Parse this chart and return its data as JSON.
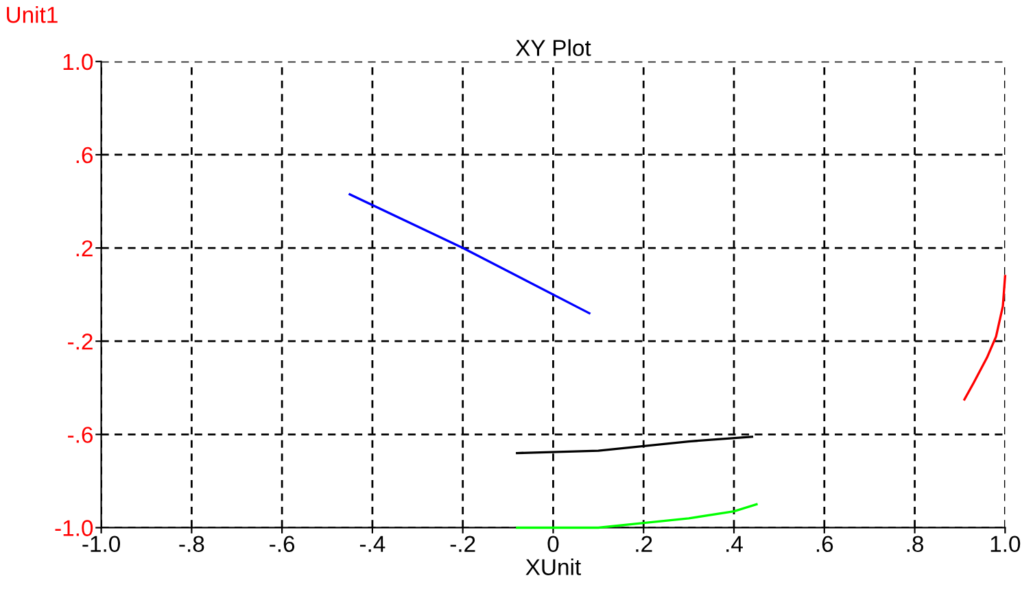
{
  "chart_data": {
    "type": "line",
    "title": "XY Plot",
    "xlabel": "XUnit",
    "ylabel": "Unit1",
    "xlim": [
      -1.0,
      1.0
    ],
    "ylim": [
      -1.0,
      1.0
    ],
    "xticks": [
      {
        "value": -1.0,
        "label": "-1.0"
      },
      {
        "value": -0.8,
        "label": "-.8"
      },
      {
        "value": -0.6,
        "label": "-.6"
      },
      {
        "value": -0.4,
        "label": "-.4"
      },
      {
        "value": -0.2,
        "label": "-.2"
      },
      0,
      {
        "value": 0.2,
        "label": ".2"
      },
      {
        "value": 0.4,
        "label": ".4"
      },
      {
        "value": 0.6,
        "label": ".6"
      },
      {
        "value": 0.8,
        "label": ".8"
      },
      {
        "value": 1.0,
        "label": "1.0"
      }
    ],
    "yticks": [
      {
        "value": -1.0,
        "label": "-1.0"
      },
      {
        "value": -0.6,
        "label": "-.6"
      },
      {
        "value": -0.2,
        "label": "-.2"
      },
      {
        "value": 0.2,
        "label": ".2"
      },
      {
        "value": 0.6,
        "label": ".6"
      },
      {
        "value": 1.0,
        "label": "1.0"
      }
    ],
    "grid": true,
    "marker": "none",
    "series": [
      {
        "color": "#0000ff",
        "x": [
          -0.45,
          -0.2,
          0.08
        ],
        "values": [
          0.43,
          0.2,
          -0.08
        ]
      },
      {
        "color": "#000000",
        "x": [
          -0.08,
          0.1,
          0.2,
          0.3,
          0.44
        ],
        "values": [
          -0.68,
          -0.67,
          -0.65,
          -0.63,
          -0.61
        ]
      },
      {
        "color": "#00ff00",
        "x": [
          -0.08,
          0.1,
          0.2,
          0.3,
          0.4,
          0.45
        ],
        "values": [
          -1.0,
          -1.0,
          -0.98,
          -0.96,
          -0.93,
          -0.9
        ]
      },
      {
        "color": "#ff0000",
        "x": [
          0.91,
          0.93,
          0.96,
          0.98,
          0.995,
          1.0
        ],
        "values": [
          -0.45,
          -0.38,
          -0.27,
          -0.18,
          -0.05,
          0.08
        ]
      }
    ]
  }
}
